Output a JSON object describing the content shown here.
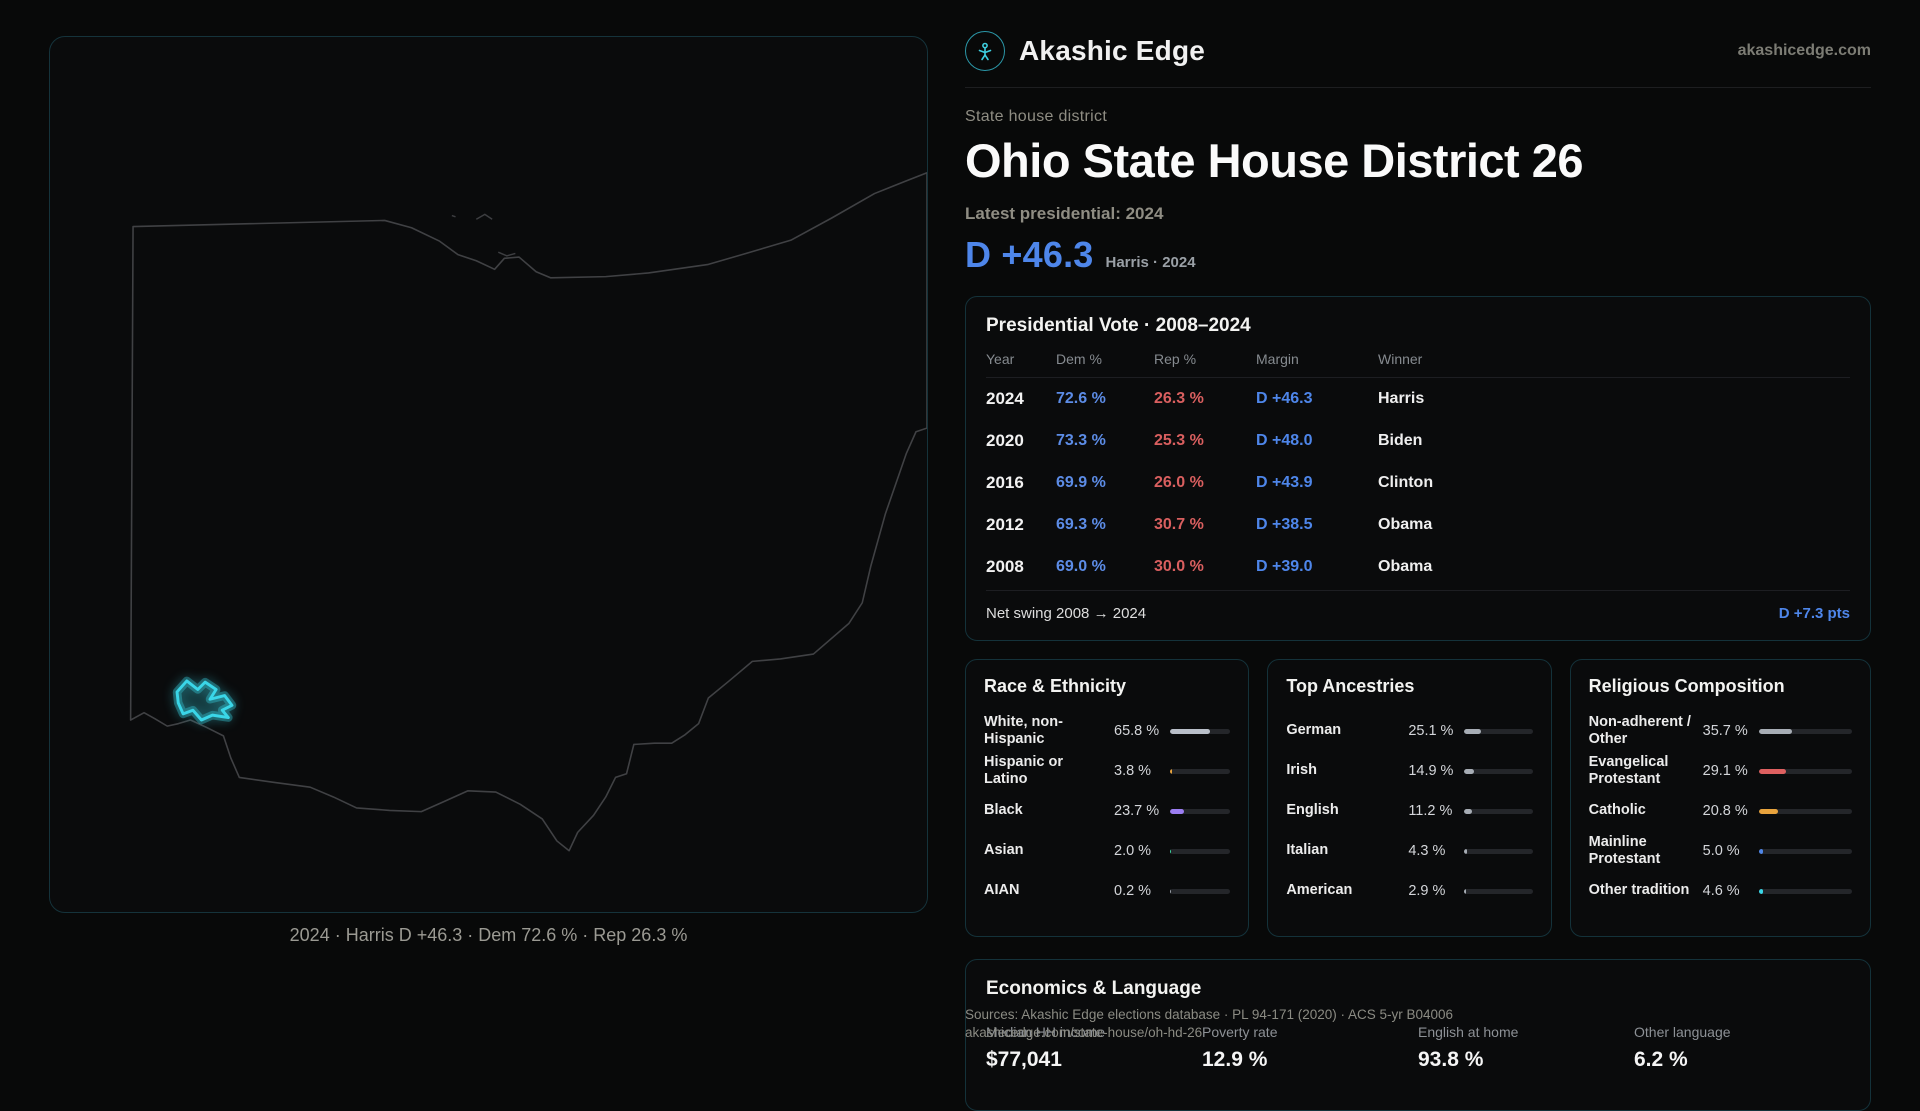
{
  "brand": {
    "name": "Akashic Edge",
    "domain": "akashicedge.com"
  },
  "map": {
    "caption": "2024 · Harris D +46.3 · Dem 72.6 % · Rep 26.3 %"
  },
  "page": {
    "kicker": "State house district",
    "title": "Ohio State House District 26",
    "latest_label": "Latest presidential: 2024",
    "headline_margin": "D +46.3",
    "headline_note": "Harris · 2024"
  },
  "presidential": {
    "title": "Presidential Vote · 2008–2024",
    "columns": {
      "year": "Year",
      "dem": "Dem %",
      "rep": "Rep %",
      "margin": "Margin",
      "winner": "Winner"
    },
    "rows": [
      {
        "year": "2024",
        "dem": "72.6 %",
        "rep": "26.3 %",
        "margin": "D +46.3",
        "winner": "Harris"
      },
      {
        "year": "2020",
        "dem": "73.3 %",
        "rep": "25.3 %",
        "margin": "D +48.0",
        "winner": "Biden"
      },
      {
        "year": "2016",
        "dem": "69.9 %",
        "rep": "26.0 %",
        "margin": "D +43.9",
        "winner": "Clinton"
      },
      {
        "year": "2012",
        "dem": "69.3 %",
        "rep": "30.7 %",
        "margin": "D +38.5",
        "winner": "Obama"
      },
      {
        "year": "2008",
        "dem": "69.0 %",
        "rep": "30.0 %",
        "margin": "D +39.0",
        "winner": "Obama"
      }
    ],
    "net_swing_label": "Net swing 2008 → 2024",
    "net_swing_value": "D +7.3 pts"
  },
  "race": {
    "title": "Race & Ethnicity",
    "items": [
      {
        "label": "White, non-Hispanic",
        "value": "65.8 %",
        "pct": 65.8,
        "color": "#b9bfc9"
      },
      {
        "label": "Hispanic or Latino",
        "value": "3.8 %",
        "pct": 3.8,
        "color": "#e8a33d"
      },
      {
        "label": "Black",
        "value": "23.7 %",
        "pct": 23.7,
        "color": "#9b7df2"
      },
      {
        "label": "Asian",
        "value": "2.0 %",
        "pct": 2.0,
        "color": "#3bd6a0"
      },
      {
        "label": "AIAN",
        "value": "0.2 %",
        "pct": 0.2,
        "color": "#9aa0a8"
      }
    ]
  },
  "ancestries": {
    "title": "Top Ancestries",
    "items": [
      {
        "label": "German",
        "value": "25.1 %",
        "pct": 25.1,
        "color": "#a7adb5"
      },
      {
        "label": "Irish",
        "value": "14.9 %",
        "pct": 14.9,
        "color": "#a7adb5"
      },
      {
        "label": "English",
        "value": "11.2 %",
        "pct": 11.2,
        "color": "#a7adb5"
      },
      {
        "label": "Italian",
        "value": "4.3 %",
        "pct": 4.3,
        "color": "#a7adb5"
      },
      {
        "label": "American",
        "value": "2.9 %",
        "pct": 2.9,
        "color": "#a7adb5"
      }
    ]
  },
  "religion": {
    "title": "Religious Composition",
    "items": [
      {
        "label": "Non-adherent / Other",
        "value": "35.7 %",
        "pct": 35.7,
        "color": "#a7adb5"
      },
      {
        "label": "Evangelical Protestant",
        "value": "29.1 %",
        "pct": 29.1,
        "color": "#de6060"
      },
      {
        "label": "Catholic",
        "value": "20.8 %",
        "pct": 20.8,
        "color": "#e8a33d"
      },
      {
        "label": "Mainline Protestant",
        "value": "5.0 %",
        "pct": 5.0,
        "color": "#4f86e8"
      },
      {
        "label": "Other tradition",
        "value": "4.6 %",
        "pct": 4.6,
        "color": "#3ad6e8"
      }
    ]
  },
  "economics": {
    "title": "Economics & Language",
    "stats": [
      {
        "label": "Median HH income",
        "value": "$77,041"
      },
      {
        "label": "Poverty rate",
        "value": "12.9 %"
      },
      {
        "label": "English at home",
        "value": "93.8 %"
      },
      {
        "label": "Other language",
        "value": "6.2 %"
      }
    ]
  },
  "footer": {
    "sources": "Sources: Akashic Edge elections database · PL 94-171 (2020) · ACS 5-yr B04006",
    "permalink": "akashicedge.com/state-house/oh-hd-26"
  }
}
